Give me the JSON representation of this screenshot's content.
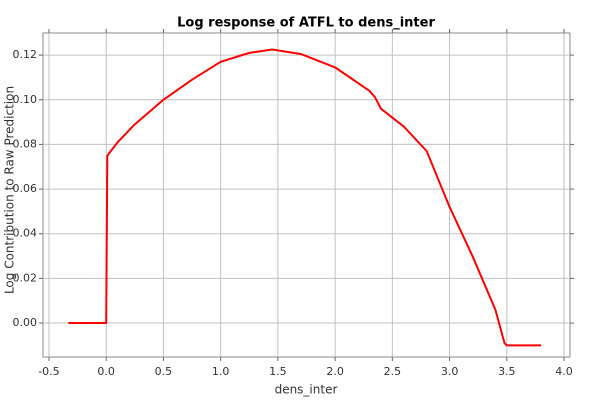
{
  "chart_data": {
    "type": "line",
    "title": "Log response of ATFL to dens_inter",
    "x_label": "dens_inter",
    "y_label": "Log Contribution to Raw Prediction",
    "x": [
      -0.33,
      0.0,
      0.01,
      0.1,
      0.25,
      0.5,
      0.75,
      1.0,
      1.25,
      1.45,
      1.7,
      2.0,
      2.3,
      2.35,
      2.4,
      2.6,
      2.8,
      3.0,
      3.2,
      3.4,
      3.48,
      3.5,
      3.8
    ],
    "values": [
      0,
      0,
      0.075,
      0.081,
      0.089,
      0.1,
      0.109,
      0.117,
      0.121,
      0.1225,
      0.1205,
      0.1145,
      0.104,
      0.101,
      0.096,
      0.088,
      0.077,
      0.052,
      0.03,
      0.006,
      -0.009,
      -0.01,
      -0.01
    ],
    "color": "#ff0000",
    "xlim": [
      -0.552,
      4.052
    ],
    "ylim": [
      -0.0152,
      0.1299
    ],
    "xticks": [
      -0.5,
      {
        "value": 0,
        "label": "0.0"
      },
      0.5,
      {
        "value": 1,
        "label": "1.0"
      },
      1.5,
      {
        "value": 2,
        "label": "2.0"
      },
      2.5,
      {
        "value": 3,
        "label": "3.0"
      },
      3.5,
      {
        "value": 4,
        "label": "4.0"
      }
    ],
    "yticks": [
      {
        "value": 0,
        "label": "0.00"
      },
      0.02,
      0.04,
      0.06,
      0.08,
      {
        "value": 0.1,
        "label": "0.10"
      },
      0.12
    ],
    "grid": true
  }
}
